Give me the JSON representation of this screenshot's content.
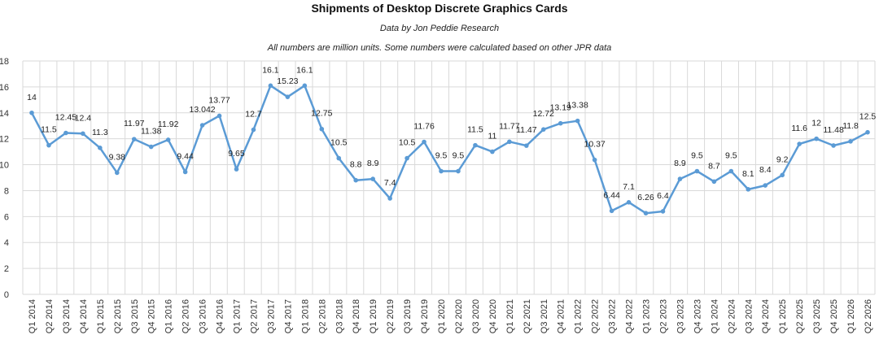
{
  "chart_data": {
    "type": "line",
    "title": "Shipments of Desktop Discrete Graphics Cards",
    "subtitle": "Data by Jon Peddie Research",
    "note": "All numbers are million units. Some numbers were calculated based on other JPR data",
    "ylim": [
      0,
      18
    ],
    "yticks": [
      "0",
      "2",
      "4",
      "6",
      "8",
      "10",
      "12",
      "14",
      "16",
      "18"
    ],
    "grid": true,
    "colors": {
      "line": "#5b9bd5",
      "grid": "#d9d9d9"
    },
    "categories": [
      "Q1 2014",
      "Q2 2014",
      "Q3 2014",
      "Q4 2014",
      "Q1 2015",
      "Q2 2015",
      "Q3 2015",
      "Q4 2015",
      "Q1 2016",
      "Q2 2016",
      "Q3 2016",
      "Q4 2016",
      "Q1 2017",
      "Q2 2017",
      "Q3 2017",
      "Q4 2017",
      "Q1 2018",
      "Q2 2018",
      "Q3 2018",
      "Q4 2018",
      "Q1 2019",
      "Q2 2019",
      "Q3 2019",
      "Q4 2019",
      "Q1 2020",
      "Q2 2020",
      "Q3 2020",
      "Q4 2020",
      "Q1 2021",
      "Q2 2021",
      "Q3 2021",
      "Q4 2021",
      "Q1 2022",
      "Q2 2022",
      "Q3 2022",
      "Q4 2022",
      "Q1 2023",
      "Q2 2023",
      "Q3 2023",
      "Q4 2023",
      "Q1 2024",
      "Q2 2024",
      "Q3 2024",
      "Q4 2024",
      "Q1 2025",
      "Q2 2025",
      "Q3 2025",
      "Q4 2025",
      "Q1 2026",
      "Q2 2026"
    ],
    "values": [
      14,
      11.5,
      12.45,
      12.4,
      11.3,
      9.38,
      11.97,
      11.38,
      11.92,
      9.44,
      13.042,
      13.77,
      9.65,
      12.7,
      16.1,
      15.23,
      16.1,
      12.75,
      10.5,
      8.8,
      8.9,
      7.4,
      10.5,
      11.76,
      9.5,
      9.5,
      11.5,
      11,
      11.77,
      11.47,
      12.72,
      13.19,
      13.38,
      10.37,
      6.44,
      7.1,
      6.26,
      6.4,
      8.9,
      9.5,
      8.7,
      9.5,
      8.1,
      8.4,
      9.2,
      11.6,
      12,
      11.48,
      11.8,
      12.5
    ],
    "data_labels": [
      "14",
      "11.5",
      "12.45",
      "12.4",
      "11.3",
      "9.38",
      "11.97",
      "11.38",
      "11.92",
      "9.44",
      "13.042",
      "13.77",
      "9.65",
      "12.7",
      "16.1",
      "15.23",
      "16.1",
      "12.75",
      "10.5",
      "8.8",
      "8.9",
      "7.4",
      "10.5",
      "11.76",
      "9.5",
      "9.5",
      "11.5",
      "11",
      "11.77",
      "11.47",
      "12.72",
      "13.19",
      "13.38",
      "10.37",
      "6.44",
      "7.1",
      "6.26",
      "6.4",
      "8.9",
      "9.5",
      "8.7",
      "9.5",
      "8.1",
      "8.4",
      "9.2",
      "11.6",
      "12",
      "11.48",
      "11.8",
      "12.5"
    ]
  }
}
